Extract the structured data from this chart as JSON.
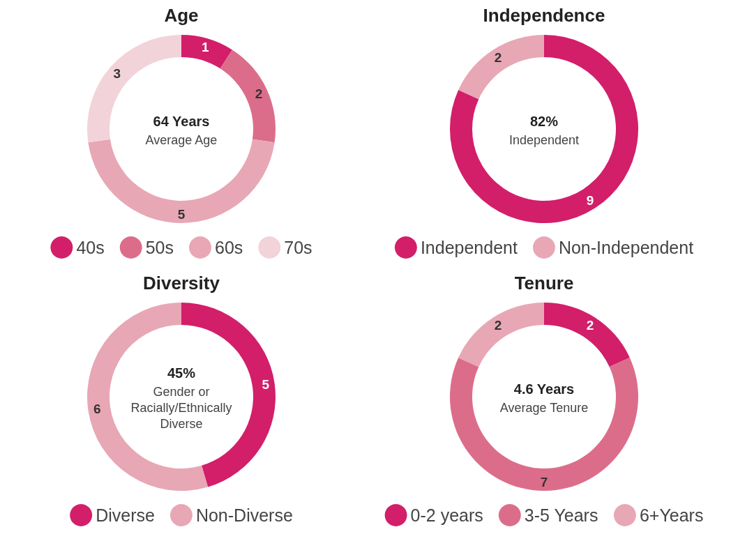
{
  "chart_data": [
    {
      "type": "donut",
      "title": "Age",
      "categories": [
        "40s",
        "50s",
        "60s",
        "70s"
      ],
      "values": [
        1,
        2,
        5,
        3
      ],
      "colors": [
        "#d31e6a",
        "#dc6d8a",
        "#e8a7b5",
        "#f2d3da"
      ],
      "data_labels": true,
      "legend": "bottom",
      "annotations": [
        "64 Years",
        "Average Age"
      ]
    },
    {
      "type": "donut",
      "title": "Independence",
      "categories": [
        "Independent",
        "Non-Independent"
      ],
      "values": [
        9,
        2
      ],
      "colors": [
        "#d31e6a",
        "#e8a7b5"
      ],
      "data_labels": true,
      "legend": "bottom",
      "annotations": [
        "82%",
        "Independent"
      ]
    },
    {
      "type": "donut",
      "title": "Diversity",
      "categories": [
        "Diverse",
        "Non-Diverse"
      ],
      "values": [
        5,
        6
      ],
      "colors": [
        "#d31e6a",
        "#e8a7b5"
      ],
      "data_labels": true,
      "legend": "bottom",
      "annotations": [
        "45%",
        "Gender or Racially/Ethnically Diverse"
      ]
    },
    {
      "type": "donut",
      "title": "Tenure",
      "categories": [
        "0-2 years",
        "3-5 Years",
        "6+Years"
      ],
      "values": [
        2,
        7,
        2
      ],
      "colors": [
        "#d31e6a",
        "#dc6d8a",
        "#e8a7b5"
      ],
      "data_labels": true,
      "legend": "bottom",
      "annotations": [
        "4.6 Years",
        "Average Tenure"
      ]
    }
  ]
}
